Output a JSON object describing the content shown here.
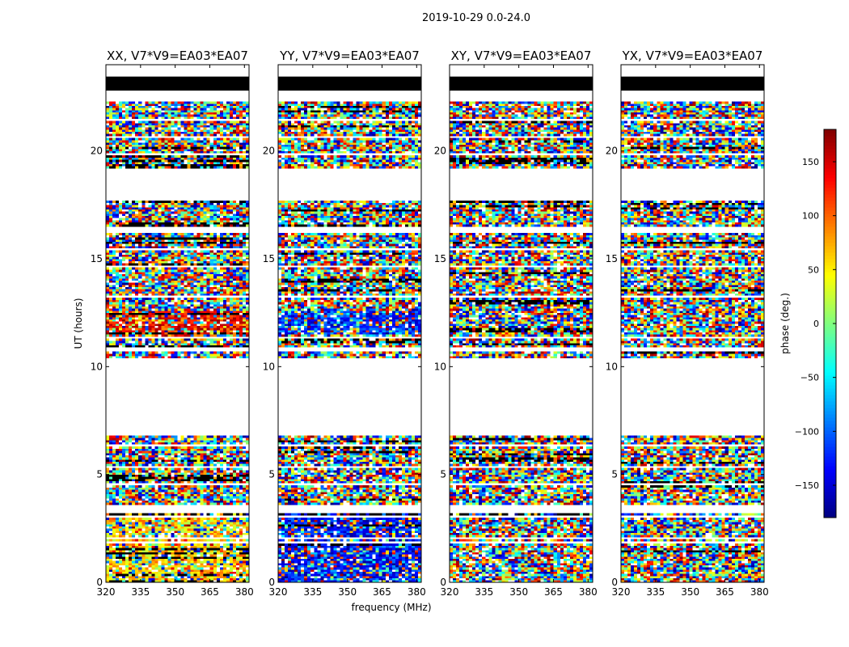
{
  "figure": {
    "suptitle": "2019-10-29 0.0-24.0",
    "xlabel": "frequency (MHz)",
    "ylabel": "UT (hours)"
  },
  "chart_data": {
    "type": "heatmap",
    "x_range": [
      320,
      382
    ],
    "y_range": [
      0,
      24
    ],
    "x_ticks": [
      320,
      335,
      350,
      365,
      380
    ],
    "y_ticks": [
      0,
      5,
      10,
      15,
      20
    ],
    "panels": [
      {
        "title": "XX, V7*V9=EA03*EA07",
        "low_band_bias": 60,
        "high_band_bias": 130
      },
      {
        "title": "YY, V7*V9=EA03*EA07",
        "low_band_bias": -130,
        "high_band_bias": -120
      },
      {
        "title": "XY, V7*V9=EA03*EA07",
        "low_band_bias": null,
        "high_band_bias": null
      },
      {
        "title": "YX, V7*V9=EA03*EA07",
        "low_band_bias": null,
        "high_band_bias": null
      }
    ],
    "data_segments_hours": [
      [
        0,
        1.5
      ],
      [
        1.55,
        3.2
      ],
      [
        3.6,
        6.8
      ],
      [
        10.4,
        10.65
      ],
      [
        10.9,
        16.2
      ],
      [
        16.5,
        17.7
      ],
      [
        19.2,
        22.3
      ]
    ],
    "blank_rows_hours": [
      [
        1.85,
        1.95
      ],
      [
        2.05,
        2.12
      ],
      [
        3.0,
        3.12
      ],
      [
        4.5,
        4.62
      ],
      [
        5.3,
        5.38
      ],
      [
        6.3,
        6.38
      ],
      [
        11.3,
        11.38
      ],
      [
        13.2,
        13.28
      ],
      [
        14.6,
        14.7
      ],
      [
        15.4,
        15.48
      ],
      [
        19.8,
        19.88
      ],
      [
        20.6,
        20.68
      ],
      [
        21.4,
        21.48
      ]
    ],
    "flag_band_hours": [
      22.8,
      23.45
    ],
    "colorbar": {
      "label": "phase (deg.)",
      "range": [
        -180,
        180
      ],
      "ticks": [
        -150,
        -100,
        -50,
        0,
        50,
        100,
        150
      ],
      "colormap": "jet"
    }
  }
}
